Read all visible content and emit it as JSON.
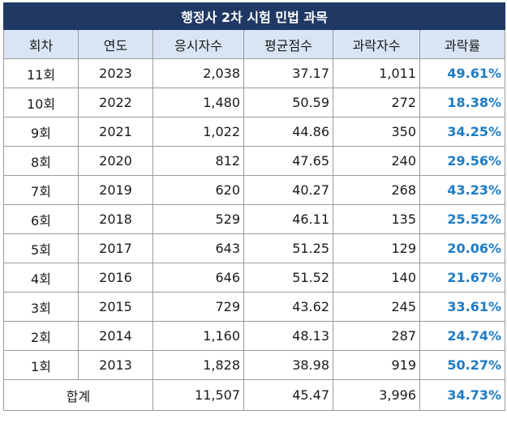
{
  "title": "행정사 2차 시험 민법 과목",
  "headers": [
    "회차",
    "연도",
    "응시자수",
    "평균점수",
    "과락자수",
    "과락률"
  ],
  "rows": [
    {
      "round": "11회",
      "year": "2023",
      "applicants": "2,038",
      "avg": "37.17",
      "fails": "1,011",
      "rate": "49.61%"
    },
    {
      "round": "10회",
      "year": "2022",
      "applicants": "1,480",
      "avg": "50.59",
      "fails": "272",
      "rate": "18.38%"
    },
    {
      "round": "9회",
      "year": "2021",
      "applicants": "1,022",
      "avg": "44.86",
      "fails": "350",
      "rate": "34.25%"
    },
    {
      "round": "8회",
      "year": "2020",
      "applicants": "812",
      "avg": "47.65",
      "fails": "240",
      "rate": "29.56%"
    },
    {
      "round": "7회",
      "year": "2019",
      "applicants": "620",
      "avg": "40.27",
      "fails": "268",
      "rate": "43.23%"
    },
    {
      "round": "6회",
      "year": "2018",
      "applicants": "529",
      "avg": "46.11",
      "fails": "135",
      "rate": "25.52%"
    },
    {
      "round": "5회",
      "year": "2017",
      "applicants": "643",
      "avg": "51.25",
      "fails": "129",
      "rate": "20.06%"
    },
    {
      "round": "4회",
      "year": "2016",
      "applicants": "646",
      "avg": "51.52",
      "fails": "140",
      "rate": "21.67%"
    },
    {
      "round": "3회",
      "year": "2015",
      "applicants": "729",
      "avg": "43.62",
      "fails": "245",
      "rate": "33.61%"
    },
    {
      "round": "2회",
      "year": "2014",
      "applicants": "1,160",
      "avg": "48.13",
      "fails": "287",
      "rate": "24.74%"
    },
    {
      "round": "1회",
      "year": "2013",
      "applicants": "1,828",
      "avg": "38.98",
      "fails": "919",
      "rate": "50.27%"
    }
  ],
  "total": {
    "label": "합계",
    "applicants": "11,507",
    "avg": "45.47",
    "fails": "3,996",
    "rate": "34.73%"
  },
  "colors": {
    "title_bg": "#1f3864",
    "header_bg": "#d9e5f4",
    "rate_text": "#1f7bc4"
  }
}
